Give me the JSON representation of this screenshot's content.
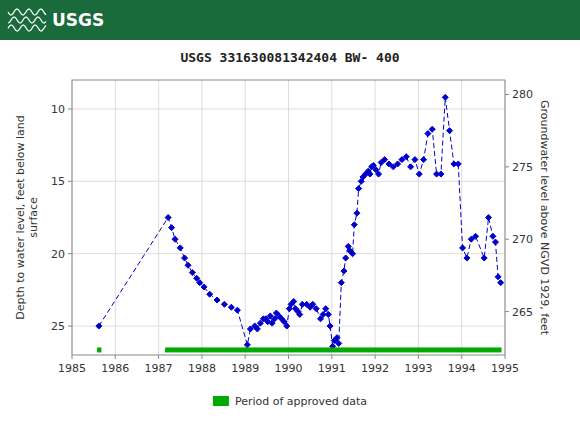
{
  "chart_data": {
    "type": "line",
    "title": "USGS 331630081342404 BW- 400",
    "annotations": [
      "USGS"
    ],
    "ylabel": "Depth to water level, feet below land\nsurface",
    "y2label": "Groundwater level above NGVD 1929, feet",
    "xlim": [
      1985,
      1995
    ],
    "xticks": [
      1985,
      1986,
      1987,
      1988,
      1989,
      1990,
      1991,
      1992,
      1993,
      1994,
      1995
    ],
    "ylim": [
      27,
      8
    ],
    "yticks": [
      10,
      15,
      20,
      25
    ],
    "y2lim": [
      262,
      281
    ],
    "y2ticks": [
      265,
      270,
      275,
      280
    ],
    "grid": true,
    "legend": "bottom",
    "x": [
      1985.62,
      1987.22,
      1987.3,
      1987.38,
      1987.5,
      1987.6,
      1987.68,
      1987.78,
      1987.88,
      1987.95,
      1988.05,
      1988.18,
      1988.35,
      1988.52,
      1988.68,
      1988.82,
      1989.05,
      1989.12,
      1989.22,
      1989.28,
      1989.35,
      1989.42,
      1989.48,
      1989.52,
      1989.58,
      1989.62,
      1989.68,
      1989.72,
      1989.78,
      1989.84,
      1989.9,
      1989.96,
      1990.02,
      1990.06,
      1990.12,
      1990.16,
      1990.22,
      1990.26,
      1990.32,
      1990.42,
      1990.5,
      1990.56,
      1990.64,
      1990.74,
      1990.8,
      1990.86,
      1990.92,
      1990.96,
      1991.02,
      1991.06,
      1991.12,
      1991.16,
      1991.22,
      1991.28,
      1991.32,
      1991.38,
      1991.42,
      1991.48,
      1991.52,
      1991.58,
      1991.62,
      1991.68,
      1991.72,
      1991.78,
      1991.84,
      1991.88,
      1991.92,
      1991.96,
      1992.02,
      1992.08,
      1992.14,
      1992.22,
      1992.32,
      1992.42,
      1992.52,
      1992.62,
      1992.72,
      1992.82,
      1992.92,
      1993.02,
      1993.12,
      1993.22,
      1993.32,
      1993.42,
      1993.52,
      1993.62,
      1993.72,
      1993.82,
      1993.92,
      1994.02,
      1994.12,
      1994.22,
      1994.32,
      1994.52,
      1994.62,
      1994.72,
      1994.78,
      1994.84,
      1994.9
    ],
    "series": [
      {
        "type": "line",
        "color": "#0000CC",
        "marker": "diamond",
        "line_style": "dashed",
        "values": [
          25.0,
          17.5,
          18.2,
          19.0,
          19.6,
          20.3,
          20.8,
          21.3,
          21.7,
          22.0,
          22.3,
          22.8,
          23.2,
          23.5,
          23.7,
          23.9,
          26.3,
          25.2,
          25.0,
          25.2,
          24.8,
          24.5,
          24.5,
          24.7,
          24.3,
          24.8,
          24.5,
          24.1,
          24.3,
          24.5,
          24.7,
          25.0,
          23.8,
          23.5,
          23.3,
          23.8,
          24.0,
          24.2,
          23.5,
          23.5,
          23.7,
          23.5,
          23.8,
          24.5,
          24.2,
          23.8,
          24.2,
          25.0,
          26.4,
          26.0,
          25.8,
          26.2,
          22.0,
          21.2,
          20.3,
          19.5,
          19.8,
          20.0,
          18.0,
          17.2,
          15.5,
          15.0,
          14.7,
          14.5,
          14.3,
          14.5,
          14.0,
          13.9,
          14.2,
          14.5,
          13.7,
          13.5,
          13.8,
          14.0,
          13.8,
          13.5,
          13.3,
          14.0,
          13.5,
          14.5,
          13.5,
          11.7,
          11.4,
          14.5,
          14.5,
          9.2,
          11.5,
          13.8,
          13.8,
          19.6,
          20.3,
          19.0,
          18.8,
          20.3,
          17.5,
          18.8,
          19.2,
          21.6,
          22.0
        ]
      },
      {
        "type": "range",
        "name": "Period of approved data",
        "color": "#00AA00",
        "y": 26.65,
        "ranges": [
          [
            1985.58,
            1985.68
          ],
          [
            1987.15,
            1994.92
          ]
        ]
      }
    ]
  }
}
